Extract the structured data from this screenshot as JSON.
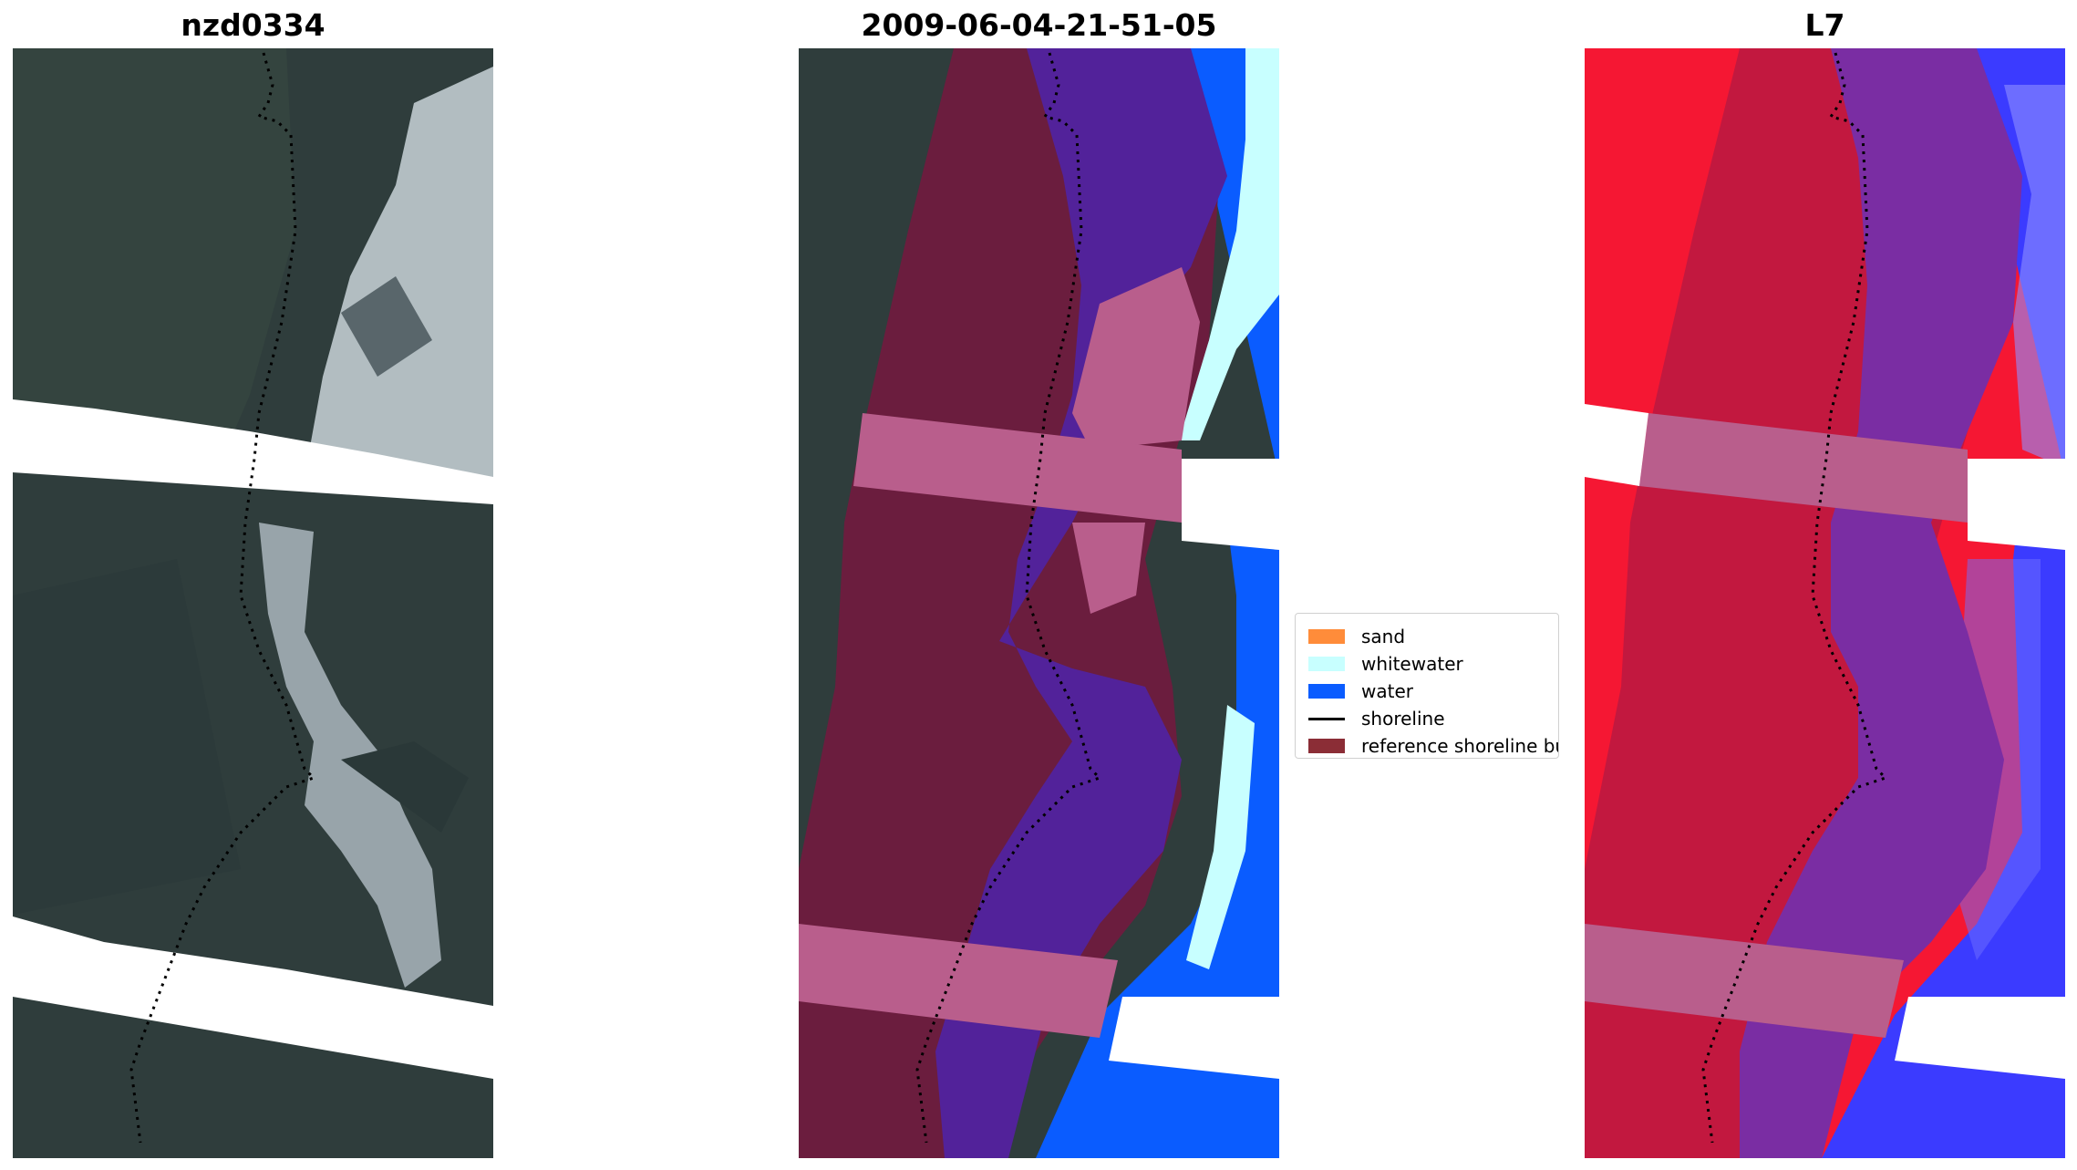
{
  "titles": {
    "left": "nzd0334",
    "middle": "2009-06-04-21-51-05",
    "right": "L7"
  },
  "legend": {
    "items": [
      {
        "label": "sand",
        "color": "#ff8c3a",
        "kind": "patch"
      },
      {
        "label": "whitewater",
        "color": "#c8ffff",
        "kind": "patch"
      },
      {
        "label": "water",
        "color": "#0a5cff",
        "kind": "patch"
      },
      {
        "label": "shoreline",
        "color": "#000000",
        "kind": "line"
      },
      {
        "label": "reference shoreline buff",
        "color": "#8b2d36",
        "kind": "patch"
      }
    ]
  },
  "colors": {
    "land_dark": "#2f3d3c",
    "surf_white": "#d9e2e6",
    "buffer_maroon": "#6b1d3e",
    "nodata_band": "#b95e8c",
    "water_purple": "#52229a",
    "ndwi_red": "#f51733",
    "ndwi_crimson": "#c2183f",
    "ndwi_blue": "#3b3bff",
    "ndwi_violet": "#7a2da3"
  }
}
